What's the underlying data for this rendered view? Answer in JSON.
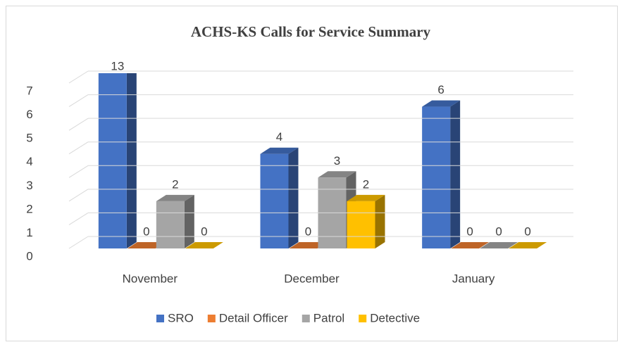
{
  "chart_data": {
    "type": "bar3d",
    "title": "ACHS-KS Calls for Service Summary",
    "categories": [
      "November",
      "December",
      "January"
    ],
    "series": [
      {
        "name": "SRO",
        "color": "#4472c4",
        "values": [
          13,
          4,
          6
        ]
      },
      {
        "name": "Detail Officer",
        "color": "#ed7d31",
        "values": [
          0,
          0,
          0
        ]
      },
      {
        "name": "Patrol",
        "color": "#a5a5a5",
        "values": [
          2,
          3,
          0
        ]
      },
      {
        "name": "Detective",
        "color": "#ffc000",
        "values": [
          0,
          2,
          0
        ]
      }
    ],
    "ylim": [
      0,
      7
    ],
    "yticks": [
      0,
      1,
      2,
      3,
      4,
      5,
      6,
      7
    ],
    "grid": true,
    "legend": "bottom"
  }
}
